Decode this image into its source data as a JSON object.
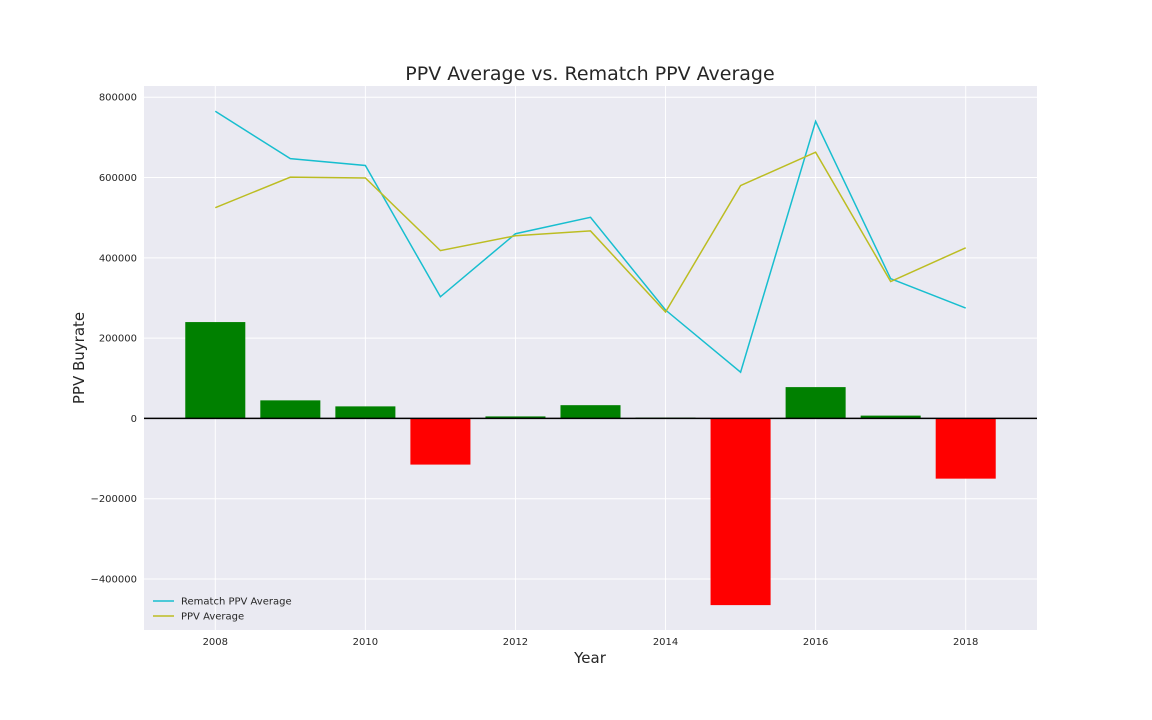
{
  "chart_data": {
    "type": "bar",
    "title": "PPV Average vs. Rematch PPV Average",
    "xlabel": "Year",
    "ylabel": "PPV Buyrate",
    "x": [
      2008,
      2009,
      2010,
      2011,
      2012,
      2013,
      2014,
      2015,
      2016,
      2017,
      2018
    ],
    "xlim": [
      2007.05,
      2018.95
    ],
    "ylim": [
      -527000,
      828000
    ],
    "xticks": [
      2008,
      2010,
      2012,
      2014,
      2016,
      2018
    ],
    "yticks": [
      -400000,
      -200000,
      0,
      200000,
      400000,
      600000,
      800000
    ],
    "xtick_labels": [
      "2008",
      "2010",
      "2012",
      "2014",
      "2016",
      "2018"
    ],
    "ytick_labels": [
      "−400000",
      "−200000",
      "0",
      "200000",
      "400000",
      "600000",
      "800000"
    ],
    "grid": true,
    "legend_position": "lower-left",
    "bars": {
      "values": [
        240000,
        45000,
        30000,
        -115000,
        5000,
        33000,
        2000,
        -465000,
        78000,
        7000,
        -150000
      ],
      "positive_color": "#008000",
      "negative_color": "#ff0000"
    },
    "series": [
      {
        "name": "Rematch PPV Average",
        "color": "#17becf",
        "values": [
          765000,
          647000,
          630000,
          303000,
          460000,
          501000,
          270000,
          115000,
          740000,
          348000,
          275000
        ]
      },
      {
        "name": "PPV Average",
        "color": "#bcbd22",
        "values": [
          525000,
          601000,
          599000,
          418000,
          455000,
          467000,
          265000,
          580000,
          663000,
          341000,
          425000
        ]
      }
    ],
    "colors": {
      "plot_background": "#eaeaf2",
      "grid": "#ffffff",
      "zero_line": "#000000"
    }
  }
}
